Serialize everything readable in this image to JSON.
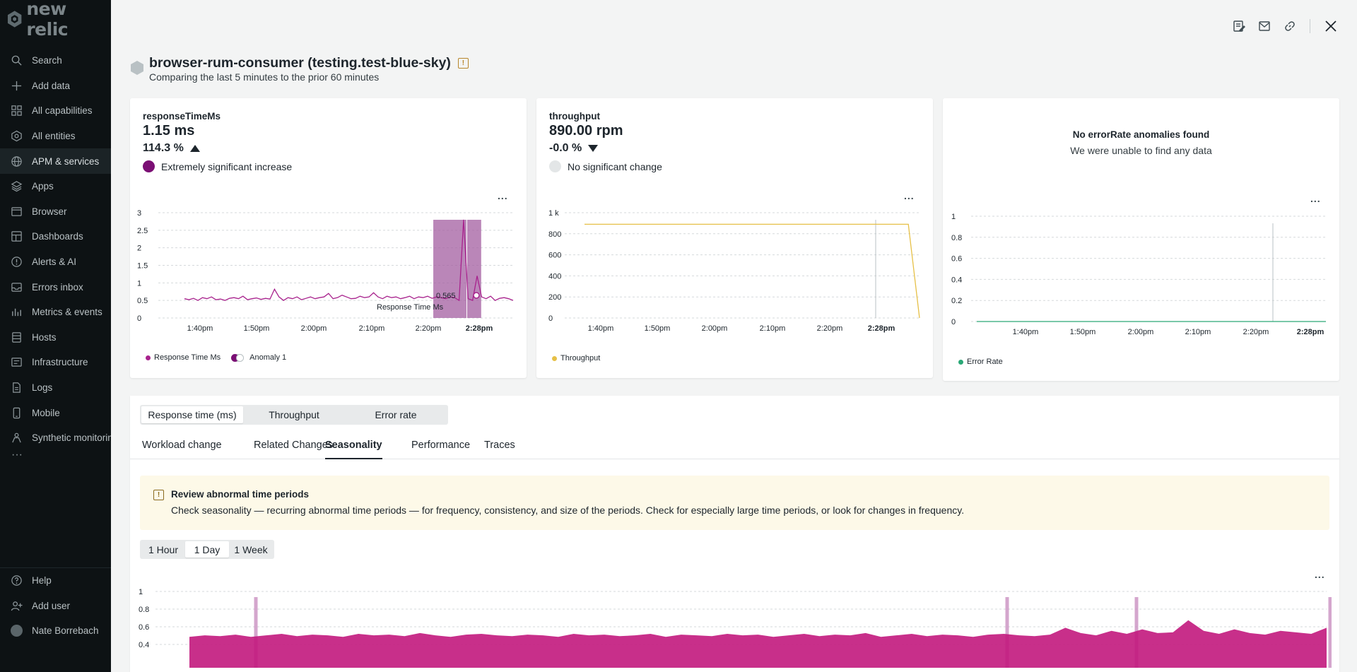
{
  "app": {
    "logo_text": "new relic"
  },
  "sidebar": {
    "items": [
      {
        "label": "Search",
        "icon": "search-icon"
      },
      {
        "label": "Add data",
        "icon": "plus-icon"
      },
      {
        "label": "All capabilities",
        "icon": "grid-icon"
      },
      {
        "label": "All entities",
        "icon": "entities-icon"
      },
      {
        "label": "APM & services",
        "icon": "globe-icon",
        "active": true
      },
      {
        "label": "Apps",
        "icon": "layers-icon"
      },
      {
        "label": "Browser",
        "icon": "browser-icon"
      },
      {
        "label": "Dashboards",
        "icon": "dashboard-icon"
      },
      {
        "label": "Alerts & AI",
        "icon": "alert-icon"
      },
      {
        "label": "Errors inbox",
        "icon": "inbox-icon"
      },
      {
        "label": "Metrics & events",
        "icon": "metrics-icon"
      },
      {
        "label": "Hosts",
        "icon": "hosts-icon"
      },
      {
        "label": "Infrastructure",
        "icon": "infrastructure-icon"
      },
      {
        "label": "Logs",
        "icon": "logs-icon"
      },
      {
        "label": "Mobile",
        "icon": "mobile-icon"
      },
      {
        "label": "Synthetic monitoring",
        "icon": "synthetic-icon"
      }
    ],
    "more": "···",
    "bottom": [
      {
        "label": "Help",
        "icon": "help-icon"
      },
      {
        "label": "Add user",
        "icon": "add-user-icon"
      },
      {
        "label": "Nate Borrebach",
        "icon": "avatar"
      }
    ]
  },
  "header": {
    "title": "browser-rum-consumer (testing.test-blue-sky)",
    "subtitle": "Comparing the last 5 minutes to the prior 60 minutes",
    "warning_glyph": "!"
  },
  "cards": [
    {
      "metric": "responseTimeMs",
      "value": "1.15 ms",
      "change": "114.3 %",
      "direction": "up",
      "significance": "Extremely significant increase",
      "sig_color": "#7b0f74",
      "menu": "...",
      "legend": "Response Time Ms",
      "legend2": "Anomaly 1",
      "legend_color": "#a8228d",
      "annotation_value": "0.565",
      "annotation_label": "Response Time Ms"
    },
    {
      "metric": "throughput",
      "value": "890.00 rpm",
      "change": "-0.0 %",
      "direction": "down",
      "significance": "No significant change",
      "sig_color": "#e3e6e7",
      "menu": "...",
      "legend": "Throughput",
      "legend_color": "#e6c047"
    },
    {
      "empty_title": "No errorRate anomalies found",
      "empty_sub": "We were unable to find any data",
      "menu": "...",
      "legend": "Error Rate",
      "legend_color": "#2aa876"
    }
  ],
  "chart_data": [
    {
      "type": "line",
      "title": "",
      "y_ticks": [
        "3",
        "2.5",
        "2",
        "1.5",
        "1",
        "0.5",
        "0"
      ],
      "x_ticks": [
        "1:40pm",
        "1:50pm",
        "2:00pm",
        "2:10pm",
        "2:20pm",
        "2:28pm"
      ],
      "ylim": [
        0,
        3
      ],
      "series": [
        {
          "name": "Response Time Ms",
          "color": "#a8228d",
          "values": [
            0.55,
            0.52,
            0.56,
            0.5,
            0.58,
            0.55,
            0.6,
            0.52,
            0.54,
            0.5,
            0.56,
            0.58,
            0.55,
            0.62,
            0.52,
            0.55,
            0.57,
            0.53,
            0.56,
            0.54,
            0.82,
            0.6,
            0.5,
            0.58,
            0.55,
            0.6,
            0.52,
            0.56,
            0.6,
            0.55,
            0.58,
            0.6,
            0.7,
            0.55,
            0.58,
            0.65,
            0.6,
            0.55,
            0.56,
            0.62,
            0.58,
            0.6,
            0.72,
            0.6,
            0.55,
            0.62,
            0.58,
            0.6,
            0.55,
            0.58,
            0.62,
            0.55,
            0.6,
            0.58,
            0.62,
            0.56,
            0.6,
            0.58,
            0.55,
            0.6,
            0.58,
            0.5,
            2.8,
            0.55,
            0.5,
            1.2,
            0.6,
            0.55,
            0.62,
            0.5,
            0.56,
            0.58,
            0.55,
            0.5
          ]
        }
      ],
      "anomaly_band": {
        "start_fraction": 0.775,
        "end_fraction": 0.91
      }
    },
    {
      "type": "line",
      "title": "",
      "y_ticks": [
        "1 k",
        "800",
        "600",
        "400",
        "200",
        "0"
      ],
      "x_ticks": [
        "1:40pm",
        "1:50pm",
        "2:00pm",
        "2:10pm",
        "2:20pm",
        "2:28pm"
      ],
      "ylim": [
        0,
        1000
      ],
      "series": [
        {
          "name": "Throughput",
          "color": "#e6c047",
          "values": [
            890,
            890,
            890,
            890,
            890,
            890,
            890,
            890,
            890,
            890,
            890,
            890,
            890,
            890,
            890,
            890,
            890,
            890,
            890,
            890,
            890,
            890,
            890,
            890,
            890,
            890,
            890,
            890,
            890,
            890,
            0
          ]
        }
      ]
    },
    {
      "type": "line",
      "title": "",
      "y_ticks": [
        "1",
        "0.8",
        "0.6",
        "0.4",
        "0.2",
        "0"
      ],
      "x_ticks": [
        "1:40pm",
        "1:50pm",
        "2:00pm",
        "2:10pm",
        "2:20pm",
        "2:28pm"
      ],
      "ylim": [
        0,
        1
      ],
      "series": [
        {
          "name": "Error Rate",
          "color": "#2aa876",
          "values": [
            0,
            0,
            0,
            0,
            0,
            0,
            0,
            0,
            0,
            0
          ]
        }
      ]
    },
    {
      "type": "area",
      "title": "",
      "y_ticks": [
        "1",
        "0.8",
        "0.6",
        "0.4"
      ],
      "ylim": [
        0.3,
        1
      ],
      "series": [
        {
          "name": "",
          "color": "#c2187d",
          "values": [
            0.4,
            0.42,
            0.41,
            0.43,
            0.4,
            0.42,
            0.44,
            0.41,
            0.43,
            0.42,
            0.4,
            0.44,
            0.42,
            0.43,
            0.41,
            0.45,
            0.42,
            0.4,
            0.43,
            0.44,
            0.42,
            0.41,
            0.43,
            0.42,
            0.4,
            0.44,
            0.42,
            0.43,
            0.41,
            0.42,
            0.44,
            0.4,
            0.43,
            0.42,
            0.41,
            0.44,
            0.42,
            0.43,
            0.4,
            0.42,
            0.44,
            0.41,
            0.43,
            0.42,
            0.45,
            0.4,
            0.42,
            0.44,
            0.41,
            0.43,
            0.42,
            0.4,
            0.43,
            0.44,
            0.42,
            0.41,
            0.43,
            0.52,
            0.45,
            0.42,
            0.48,
            0.44,
            0.5,
            0.45,
            0.46,
            0.62,
            0.48,
            0.44,
            0.5,
            0.45,
            0.43,
            0.48,
            0.46,
            0.44,
            0.52
          ]
        }
      ]
    }
  ],
  "panel": {
    "metric_tabs": [
      "Response time (ms)",
      "Throughput",
      "Error rate"
    ],
    "active_metric": 0,
    "tabs": [
      "Workload change",
      "Related Changes",
      "Seasonality",
      "Performance",
      "Traces"
    ],
    "active_tab": 2,
    "callout": {
      "glyph": "!",
      "title": "Review abnormal time periods",
      "body": "Check seasonality — recurring abnormal time periods — for frequency, consistency, and size of the periods. Check for especially large time periods, or look for changes in frequency."
    },
    "ranges": [
      "1 Hour",
      "1 Day",
      "1 Week"
    ],
    "active_range": 1,
    "menu": "..."
  }
}
